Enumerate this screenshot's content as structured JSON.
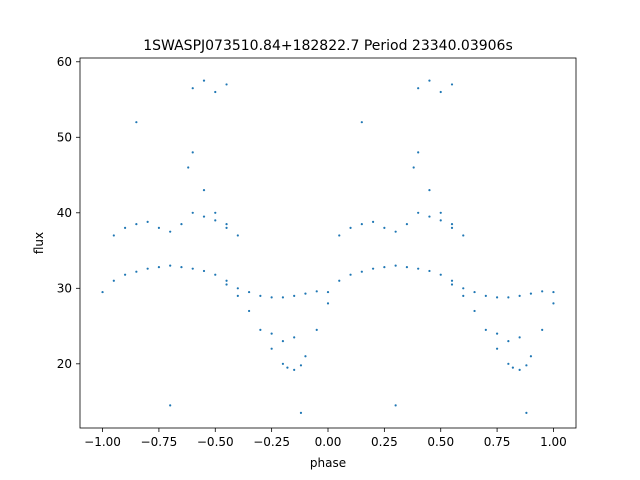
{
  "chart_data": {
    "type": "scatter",
    "title": "1SWASPJ073510.84+182822.7 Period 23340.03906s",
    "xlabel": "phase",
    "ylabel": "flux",
    "xlim": [
      -1.1,
      1.1
    ],
    "ylim": [
      11.5,
      60.5
    ],
    "xticks": [
      -1.0,
      -0.75,
      -0.5,
      -0.25,
      0.0,
      0.25,
      0.5,
      0.75,
      1.0
    ],
    "xtick_labels": [
      "−1.00",
      "−0.75",
      "−0.50",
      "−0.25",
      "0.00",
      "0.25",
      "0.50",
      "0.75",
      "1.00"
    ],
    "yticks": [
      20,
      30,
      40,
      50,
      60
    ],
    "ytick_labels": [
      "20",
      "30",
      "40",
      "50",
      "60"
    ],
    "grid": false,
    "marker_color": "#1f77b4",
    "series": [
      {
        "x": [
          -1.0,
          -0.95,
          -0.9,
          -0.85,
          -0.8,
          -0.75,
          -0.7,
          -0.65,
          -0.6,
          -0.55,
          -0.5,
          -0.45,
          -0.4,
          -0.35,
          -0.3,
          -0.25,
          -0.2,
          -0.15,
          -0.1,
          -0.05,
          0.0,
          0.05,
          0.1,
          0.15,
          0.2,
          0.25,
          0.3,
          0.35,
          0.4,
          0.45,
          0.5,
          0.55,
          0.6,
          0.65,
          0.7,
          0.75,
          0.8,
          0.85,
          0.9,
          0.95,
          1.0
        ],
        "y": [
          29.5,
          31.0,
          31.8,
          32.2,
          32.6,
          32.8,
          33.0,
          32.8,
          32.6,
          32.3,
          31.8,
          31.0,
          30.0,
          29.5,
          29.0,
          28.8,
          28.8,
          29.0,
          29.3,
          29.6,
          29.5,
          31.0,
          31.8,
          32.2,
          32.6,
          32.8,
          33.0,
          32.8,
          32.6,
          32.3,
          31.8,
          31.0,
          30.0,
          29.5,
          29.0,
          28.8,
          28.8,
          29.0,
          29.3,
          29.6,
          29.5
        ]
      },
      {
        "x": [
          -0.45,
          -0.4,
          -0.35,
          -0.3,
          -0.25,
          -0.2,
          -0.18,
          -0.15,
          -0.12,
          -0.1,
          -0.05,
          0.0,
          0.55,
          0.6,
          0.65,
          0.7,
          0.75,
          0.8,
          0.82,
          0.85,
          0.88,
          0.9,
          0.95,
          1.0
        ],
        "y": [
          30.5,
          29.0,
          27.0,
          24.5,
          22.0,
          20.0,
          19.5,
          19.2,
          19.8,
          21.0,
          24.5,
          28.0,
          30.5,
          29.0,
          27.0,
          24.5,
          22.0,
          20.0,
          19.5,
          19.2,
          19.8,
          21.0,
          24.5,
          28.0
        ]
      },
      {
        "x": [
          -0.95,
          -0.9,
          -0.85,
          -0.8,
          -0.75,
          -0.7,
          -0.65,
          -0.6,
          -0.55,
          -0.5,
          -0.45,
          -0.4,
          0.05,
          0.1,
          0.15,
          0.2,
          0.25,
          0.3,
          0.35,
          0.4,
          0.45,
          0.5,
          0.55,
          0.6
        ],
        "y": [
          37.0,
          38.0,
          38.5,
          38.8,
          38.0,
          37.5,
          38.5,
          40.0,
          39.5,
          39.0,
          38.0,
          37.0,
          37.0,
          38.0,
          38.5,
          38.8,
          38.0,
          37.5,
          38.5,
          40.0,
          39.5,
          39.0,
          38.0,
          37.0
        ]
      },
      {
        "x": [
          -0.62,
          -0.6,
          -0.55,
          -0.5,
          -0.45,
          0.38,
          0.4,
          0.45,
          0.5,
          0.55,
          -0.25,
          -0.2,
          -0.15,
          0.75,
          0.8,
          0.85
        ],
        "y": [
          46.0,
          48.0,
          43.0,
          40.0,
          38.5,
          46.0,
          48.0,
          43.0,
          40.0,
          38.5,
          24.0,
          23.0,
          23.5,
          24.0,
          23.0,
          23.5
        ]
      },
      {
        "x": [
          -0.6,
          -0.55,
          -0.5,
          -0.45,
          0.4,
          0.45,
          0.5,
          0.55,
          -0.7,
          0.3,
          -0.85,
          0.15,
          -0.12,
          0.88
        ],
        "y": [
          56.5,
          57.5,
          56.0,
          57.0,
          56.5,
          57.5,
          56.0,
          57.0,
          14.5,
          14.5,
          52.0,
          52.0,
          13.5,
          13.5
        ]
      }
    ]
  }
}
